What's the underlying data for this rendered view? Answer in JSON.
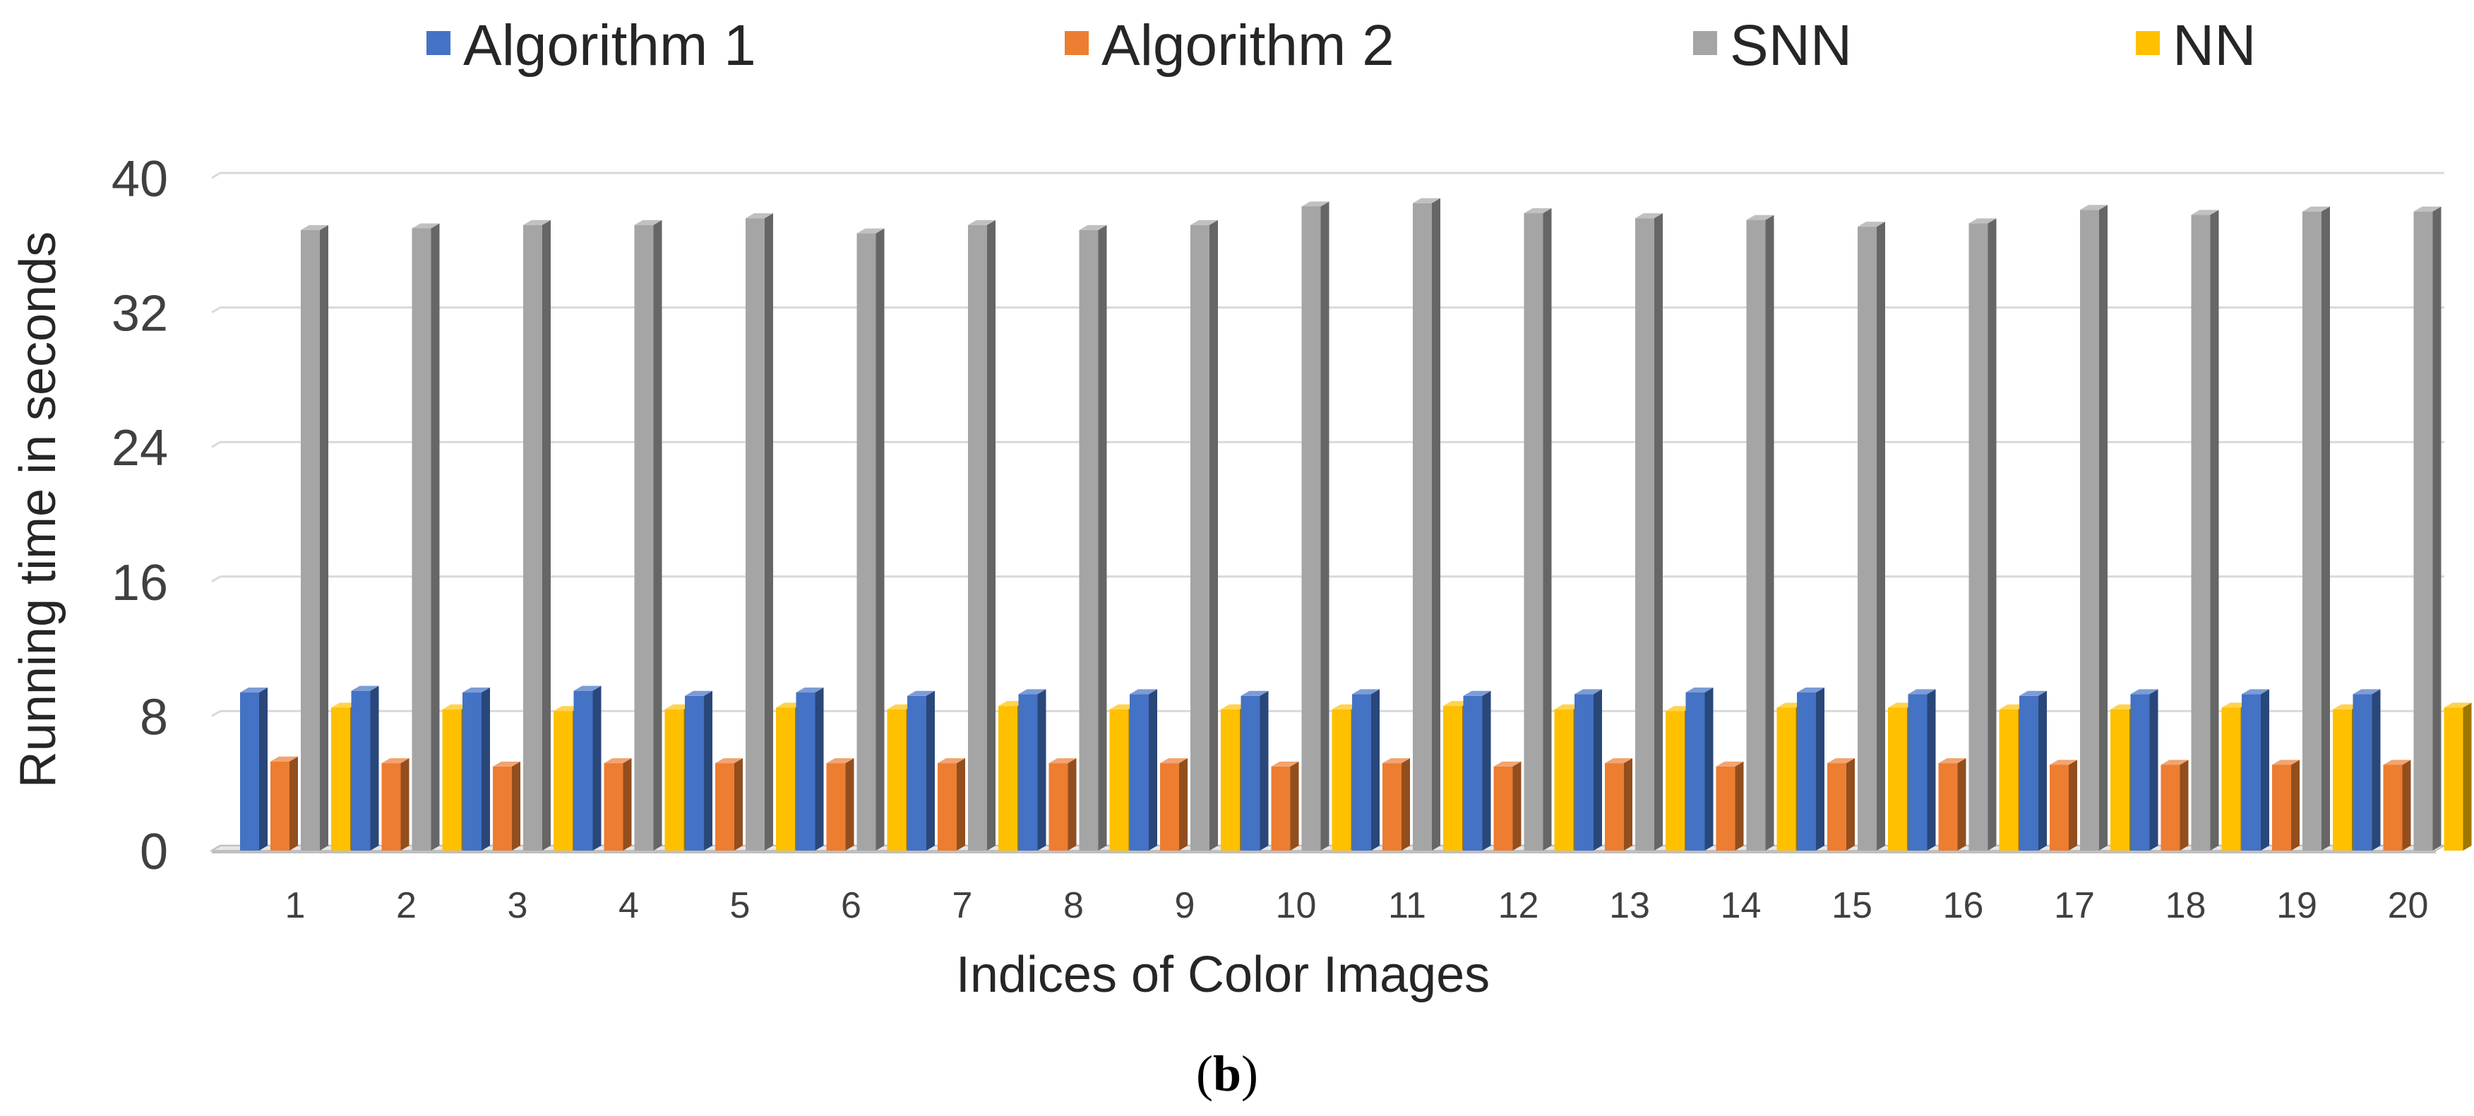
{
  "chart_data": {
    "type": "bar",
    "style": "3d-clustered-column",
    "categories": [
      "1",
      "2",
      "3",
      "4",
      "5",
      "6",
      "7",
      "8",
      "9",
      "10",
      "11",
      "12",
      "13",
      "14",
      "15",
      "16",
      "17",
      "18",
      "19",
      "20"
    ],
    "series": [
      {
        "name": "Algorithm 1",
        "color": "#4472C4",
        "values": [
          9.4,
          9.5,
          9.4,
          9.5,
          9.2,
          9.4,
          9.2,
          9.3,
          9.3,
          9.2,
          9.3,
          9.2,
          9.3,
          9.4,
          9.4,
          9.3,
          9.2,
          9.3,
          9.3,
          9.3
        ]
      },
      {
        "name": "Algorithm 2",
        "color": "#ED7D31",
        "values": [
          5.3,
          5.2,
          5.0,
          5.2,
          5.2,
          5.2,
          5.2,
          5.2,
          5.2,
          5.0,
          5.2,
          5.0,
          5.2,
          5.0,
          5.2,
          5.2,
          5.1,
          5.1,
          5.1,
          5.1
        ]
      },
      {
        "name": "SNN",
        "color": "#A5A5A5",
        "values": [
          36.9,
          37.0,
          37.2,
          37.2,
          37.6,
          36.7,
          37.2,
          36.9,
          37.2,
          38.3,
          38.5,
          37.9,
          37.6,
          37.5,
          37.1,
          37.3,
          38.1,
          37.8,
          38.0,
          38.0
        ]
      },
      {
        "name": "NN",
        "color": "#FFC000",
        "values": [
          8.5,
          8.4,
          8.3,
          8.4,
          8.5,
          8.4,
          8.6,
          8.4,
          8.4,
          8.4,
          8.6,
          8.4,
          8.3,
          8.5,
          8.5,
          8.4,
          8.4,
          8.5,
          8.4,
          8.5
        ]
      }
    ],
    "xlabel": "Indices of Color Images",
    "ylabel": "Running time in seconds",
    "ylim": [
      0,
      40
    ],
    "yticks": [
      "0",
      "8",
      "16",
      "24",
      "32",
      "40"
    ],
    "grid": true,
    "legend_position": "top",
    "caption_open": "(",
    "caption_letter": "b",
    "caption_close": ")"
  }
}
